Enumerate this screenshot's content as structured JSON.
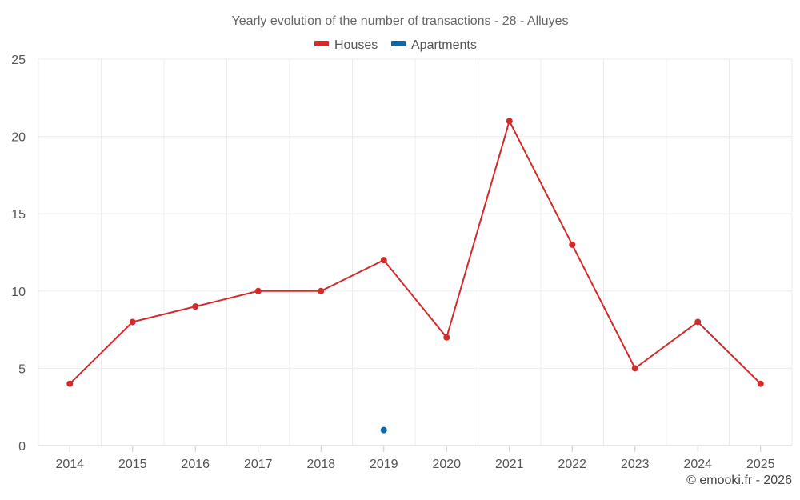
{
  "chart_data": {
    "type": "line",
    "title": "Yearly evolution of the number of transactions - 28 - Alluyes",
    "categories": [
      "2014",
      "2015",
      "2016",
      "2017",
      "2018",
      "2019",
      "2020",
      "2021",
      "2022",
      "2023",
      "2024",
      "2025"
    ],
    "series": [
      {
        "name": "Houses",
        "color": "#d32a2a",
        "values": [
          4,
          8,
          9,
          10,
          10,
          12,
          7,
          21,
          13,
          5,
          8,
          4
        ]
      },
      {
        "name": "Apartments",
        "color": "#0a6aa8",
        "values": [
          null,
          null,
          null,
          null,
          null,
          1,
          null,
          null,
          null,
          null,
          null,
          null
        ]
      }
    ],
    "ylim": [
      0,
      25
    ],
    "yticks": [
      0,
      5,
      10,
      15,
      20,
      25
    ],
    "grid": true,
    "legend": "top-center",
    "xlabel": "",
    "ylabel": ""
  },
  "credit": "© emooki.fr - 2026"
}
